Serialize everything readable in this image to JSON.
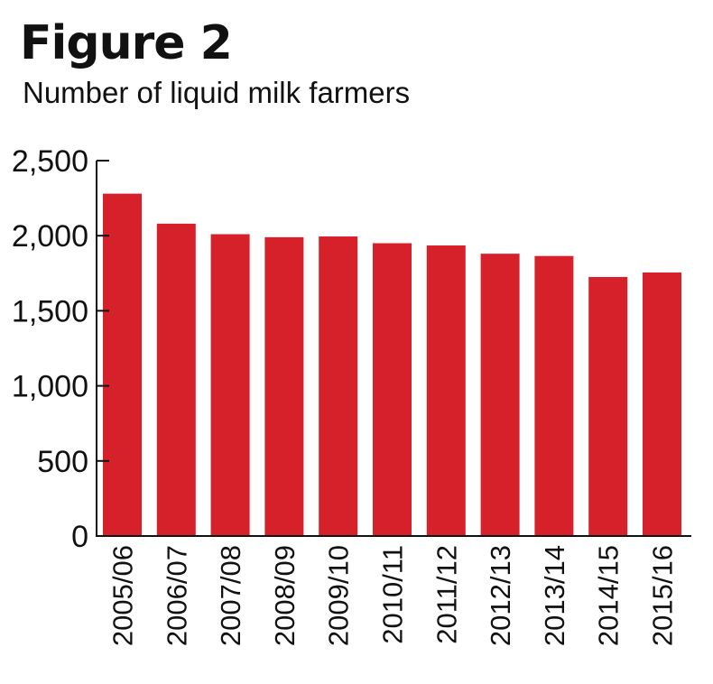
{
  "chart_data": {
    "type": "bar",
    "title": "Figure 2",
    "subtitle": "Number of liquid milk farmers",
    "categories": [
      "2005/06",
      "2006/07",
      "2007/08",
      "2008/09",
      "2009/10",
      "2010/11",
      "2011/12",
      "2012/13",
      "2013/14",
      "2014/15",
      "2015/16"
    ],
    "values": [
      2280,
      2080,
      2010,
      1990,
      1995,
      1950,
      1935,
      1880,
      1865,
      1725,
      1755
    ],
    "yticks": [
      0,
      500,
      1000,
      1500,
      2000,
      2500
    ],
    "ytick_labels": [
      "0",
      "500",
      "1,000",
      "1,500",
      "2,000",
      "2,500"
    ],
    "ylim": [
      0,
      2500
    ],
    "xlabel": "",
    "ylabel": "",
    "grid": false,
    "bar_color": "#d7212a",
    "axis_color": "#111111"
  }
}
